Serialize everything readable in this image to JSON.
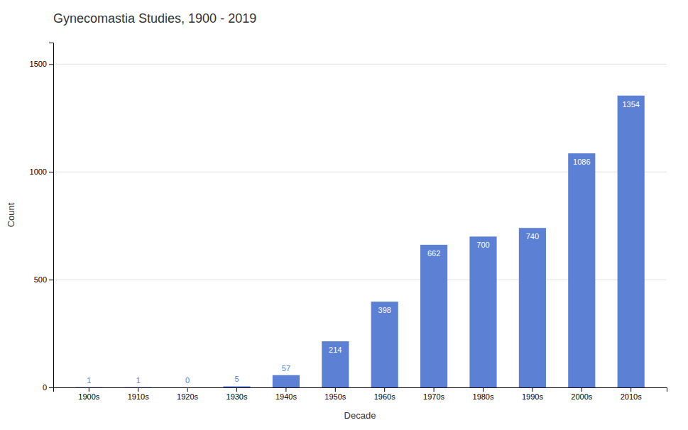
{
  "chart_data": {
    "type": "bar",
    "title": "Gynecomastia Studies, 1900 - 2019",
    "xlabel": "Decade",
    "ylabel": "Count",
    "categories": [
      "1900s",
      "1910s",
      "1920s",
      "1930s",
      "1940s",
      "1950s",
      "1960s",
      "1970s",
      "1980s",
      "1990s",
      "2000s",
      "2010s"
    ],
    "values": [
      1,
      1,
      0,
      5,
      57,
      214,
      398,
      662,
      700,
      740,
      1086,
      1354
    ],
    "color": "#5b80d4",
    "ylim": [
      0,
      1600
    ],
    "yticks": [
      0,
      500,
      1000,
      1500
    ],
    "grid": true,
    "data_labels": true
  }
}
